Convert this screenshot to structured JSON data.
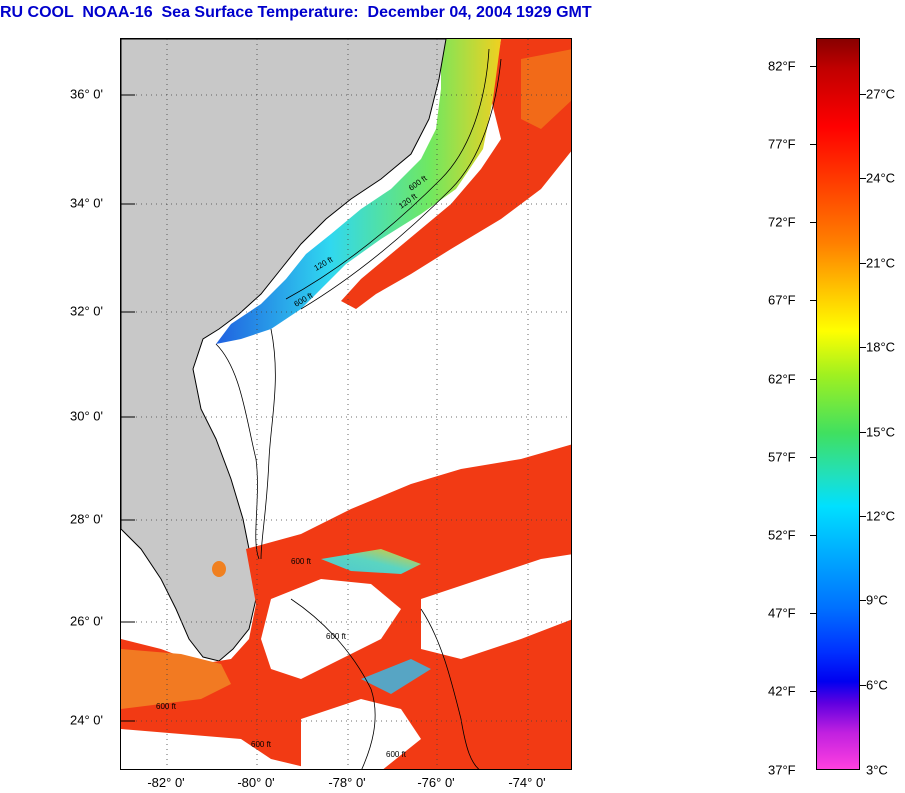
{
  "title": "RU COOL  NOAA-16  Sea Surface Temperature:  December 04, 2004 1929 GMT",
  "map": {
    "lat_labels": [
      "36° 0'",
      "34° 0'",
      "32° 0'",
      "30° 0'",
      "28° 0'",
      "26° 0'",
      "24° 0'"
    ],
    "lon_labels": [
      "-82° 0'",
      "-80° 0'",
      "-78° 0'",
      "-76° 0'",
      "-74° 0'"
    ],
    "contour_labels": [
      "120 ft",
      "600 ft",
      "120 ft",
      "600 ft",
      "600 ft",
      "600 ft",
      "600 ft",
      "600 ft",
      "600 ft"
    ],
    "colors": {
      "land": "#c8c8c8",
      "cloud": "#ffffff",
      "warm": "#f03010",
      "coastal_cool": "#30d8f0"
    }
  },
  "colorbar": {
    "fahrenheit": [
      "82°F",
      "77°F",
      "72°F",
      "67°F",
      "62°F",
      "57°F",
      "52°F",
      "47°F",
      "42°F",
      "37°F"
    ],
    "celsius": [
      "27°C",
      "24°C",
      "21°C",
      "18°C",
      "15°C",
      "12°C",
      "9°C",
      "6°C",
      "3°C"
    ]
  }
}
